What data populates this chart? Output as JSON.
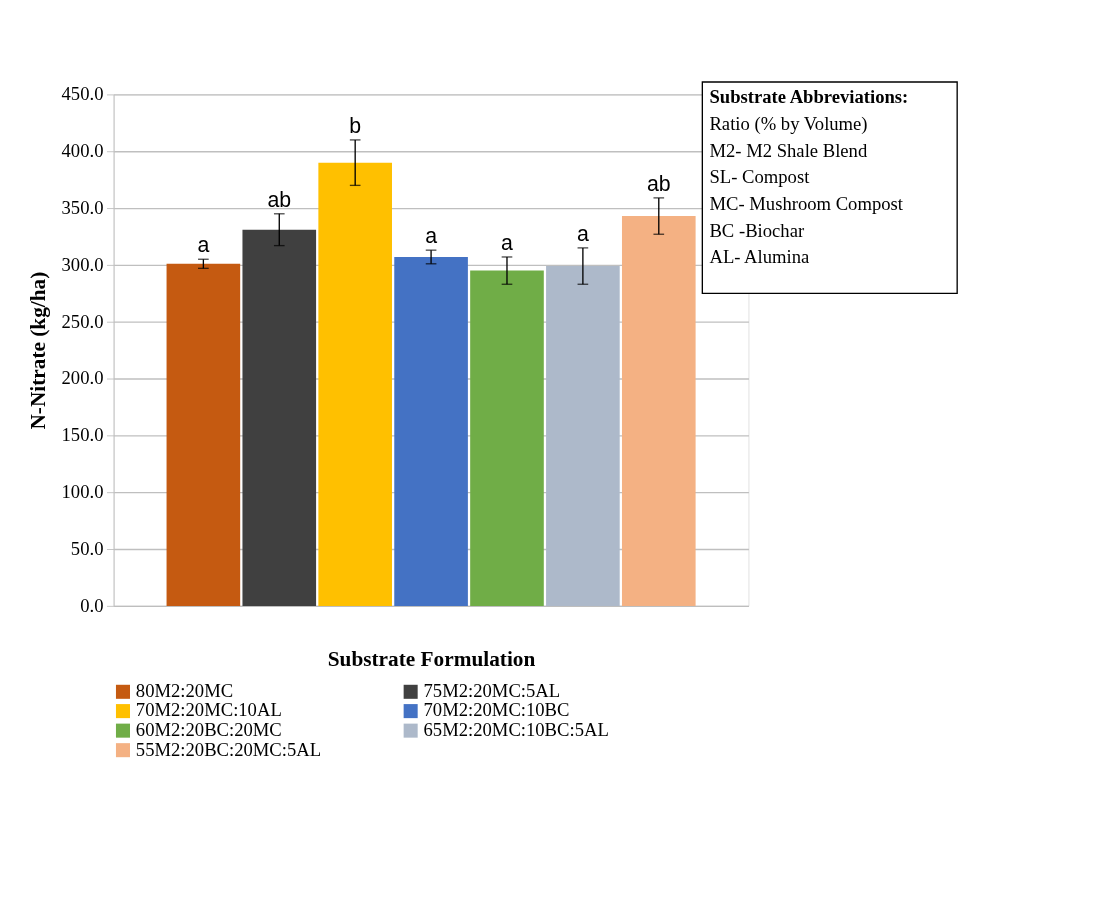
{
  "chart_data": {
    "type": "bar",
    "xlabel": "Substrate Formulation",
    "ylabel": "N-Nitrate (kg/ha)",
    "categories": [
      null
    ],
    "series": [
      {
        "name": "80M2:20MC",
        "color": "#c55a11",
        "values": [
          301
        ],
        "errors": [
          4
        ],
        "value_labels": [
          "a"
        ]
      },
      {
        "name": "75M2:20MC:5AL",
        "color": "#404040",
        "values": [
          331
        ],
        "errors": [
          14
        ],
        "value_labels": [
          "ab"
        ]
      },
      {
        "name": "70M2:20MC:10AL",
        "color": "#ffc000",
        "values": [
          390
        ],
        "errors": [
          20
        ],
        "value_labels": [
          "b"
        ]
      },
      {
        "name": "70M2:20MC:10BC",
        "color": "#4472c4",
        "values": [
          307
        ],
        "errors": [
          6
        ],
        "value_labels": [
          "a"
        ]
      },
      {
        "name": "60M2:20BC:20MC",
        "color": "#70ad47",
        "values": [
          295
        ],
        "errors": [
          12
        ],
        "value_labels": [
          "a"
        ]
      },
      {
        "name": "65M2:20MC:10BC:5AL",
        "color": "#adb9ca",
        "values": [
          299
        ],
        "errors": [
          16
        ],
        "value_labels": [
          "a"
        ]
      },
      {
        "name": "55M2:20BC:20MC:5AL",
        "color": "#f4b183",
        "values": [
          343
        ],
        "errors": [
          16
        ],
        "value_labels": [
          "ab"
        ]
      }
    ],
    "ylim": [
      0,
      450
    ],
    "yticks": [
      {
        "value": 0,
        "label": "0.0"
      },
      {
        "value": 50,
        "label": "50.0"
      },
      {
        "value": 100,
        "label": "100.0"
      },
      {
        "value": 150,
        "label": "150.0"
      },
      {
        "value": 200,
        "label": "200.0"
      },
      {
        "value": 250,
        "label": "250.0"
      },
      {
        "value": 300,
        "label": "300.0"
      },
      {
        "value": 350,
        "label": "350.0"
      },
      {
        "value": 400,
        "label": "400.0"
      },
      {
        "value": 450,
        "label": "450.0"
      }
    ],
    "grid": "y",
    "legend": "bottom",
    "tick_labels": "y",
    "annotations": [
      "Substrate Abbreviations:",
      "Ratio (% by Volume)",
      "M2- M2 Shale Blend",
      "SL- Compost",
      "MC- Mushroom Compost",
      "BC -Biochar",
      "AL- Alumina"
    ]
  }
}
